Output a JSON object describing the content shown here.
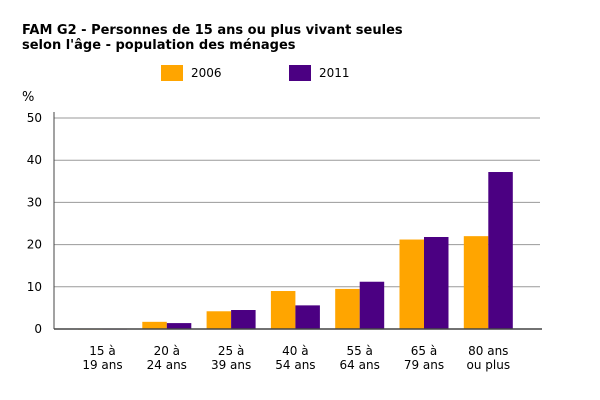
{
  "title_line1": "FAM G2 - Personnes de 15 ans ou plus vivant seules",
  "title_line2": "selon l'âge - population des ménages",
  "chart_data": {
    "type": "bar",
    "title": "FAM G2 - Personnes de 15 ans ou plus vivant seules selon l'âge - population des ménages",
    "ylabel": "%",
    "xlabel": "",
    "ylim": [
      0,
      50
    ],
    "yticks": [
      0,
      10,
      20,
      30,
      40,
      50
    ],
    "grid": true,
    "legend_position": "top",
    "categories": [
      [
        "15 à",
        "19 ans"
      ],
      [
        "20 à",
        "24 ans"
      ],
      [
        "25 à",
        "39 ans"
      ],
      [
        "40 à",
        "54 ans"
      ],
      [
        "55 à",
        "64 ans"
      ],
      [
        "65 à",
        "79 ans"
      ],
      [
        "80 ans",
        "ou plus"
      ]
    ],
    "series": [
      {
        "name": "2006",
        "color": "#FFA500",
        "values": [
          0.1,
          1.7,
          4.2,
          9.0,
          9.5,
          21.2,
          22.0
        ]
      },
      {
        "name": "2011",
        "color": "#4B0082",
        "values": [
          0.1,
          1.4,
          4.5,
          5.6,
          11.2,
          21.8,
          37.2
        ]
      }
    ]
  }
}
